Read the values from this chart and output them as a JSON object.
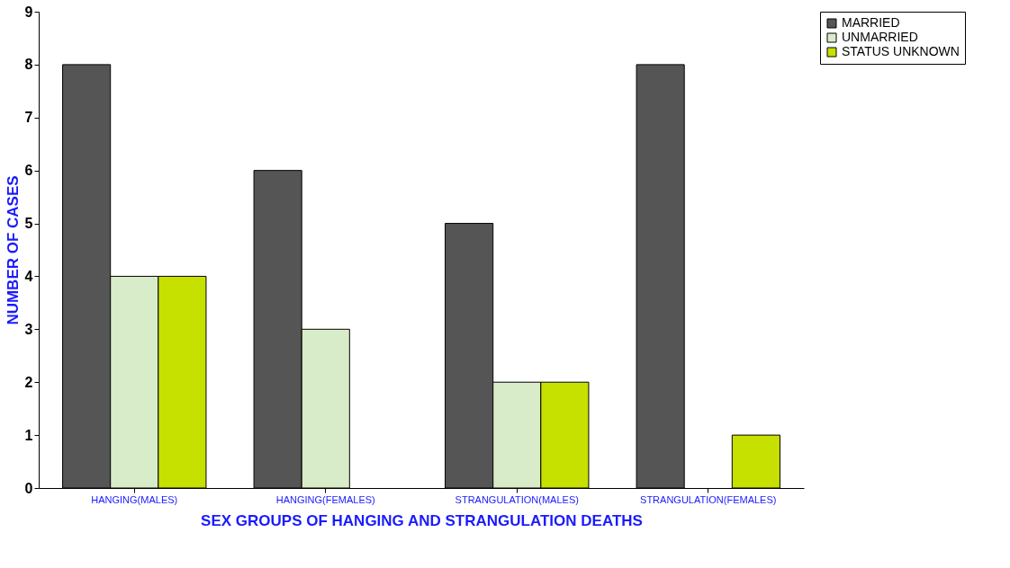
{
  "chart_data": {
    "type": "bar",
    "xlabel": "SEX GROUPS OF HANGING AND STRANGULATION DEATHS",
    "ylabel": "NUMBER OF CASES",
    "categories": [
      "HANGING(MALES)",
      "HANGING(FEMALES)",
      "STRANGULATION(MALES)",
      "STRANGULATION(FEMALES)"
    ],
    "series": [
      {
        "name": "MARRIED",
        "color": "#555555",
        "values": [
          8,
          6,
          5,
          8
        ]
      },
      {
        "name": "UNMARRIED",
        "color": "#d9ecc9",
        "values": [
          4,
          3,
          2,
          null
        ]
      },
      {
        "name": "STATUS UNKNOWN",
        "color": "#c6e000",
        "values": [
          4,
          null,
          2,
          1
        ]
      }
    ],
    "ylim": [
      0,
      9
    ],
    "yticks": [
      0,
      1,
      2,
      3,
      4,
      5,
      6,
      7,
      8,
      9
    ],
    "grid": false,
    "legend": "right"
  }
}
